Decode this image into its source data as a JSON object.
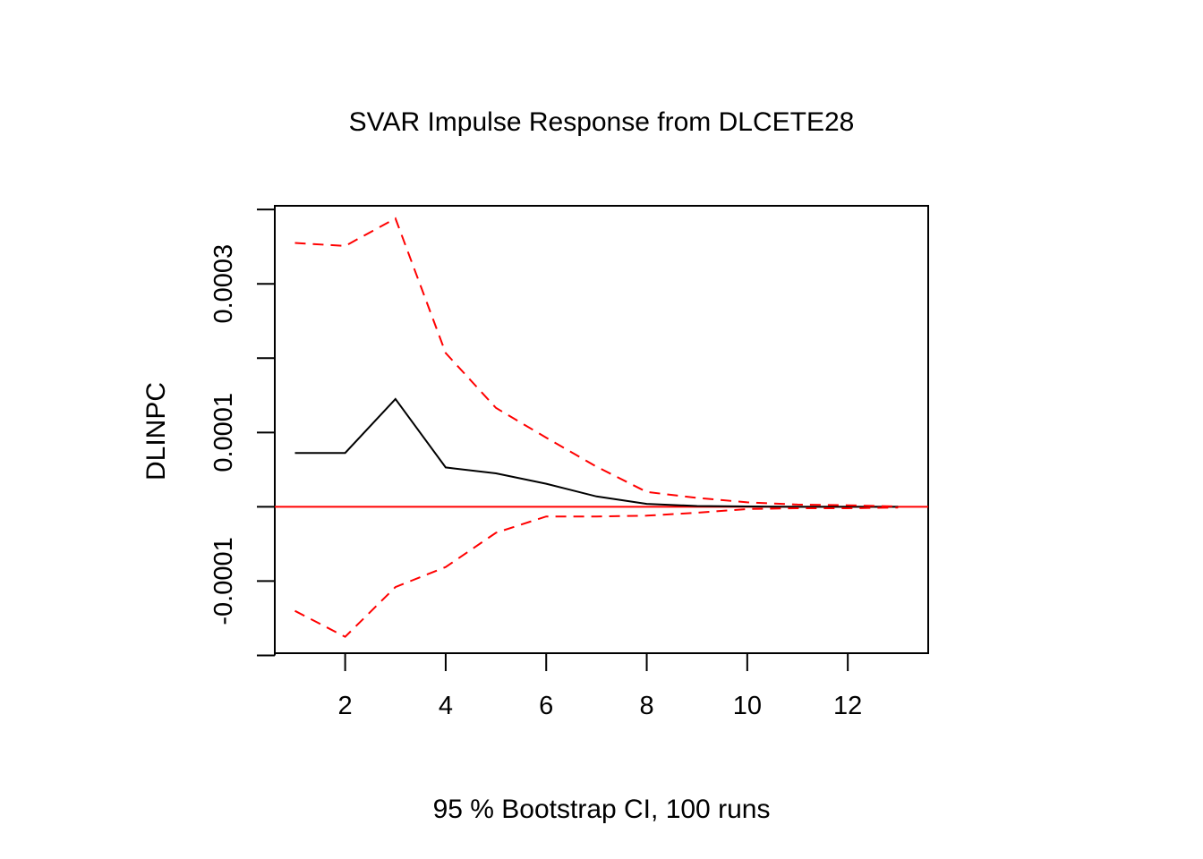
{
  "chart_data": {
    "type": "line",
    "title": "SVAR Impulse Response from DLCETE28",
    "xlabel": "95 % Bootstrap CI,  100 runs",
    "ylabel": "DLINPC",
    "xlim": [
      0.6,
      13.6
    ],
    "ylim": [
      -0.000197,
      0.000405
    ],
    "x_ticks": [
      2,
      4,
      6,
      8,
      10,
      12
    ],
    "x_tick_labels": [
      "2",
      "4",
      "6",
      "8",
      "10",
      "12"
    ],
    "y_ticks": [
      -0.0002,
      -0.0001,
      0.0,
      0.0001,
      0.0002,
      0.0003,
      0.0004
    ],
    "y_tick_labels": [
      "",
      "-0.0001",
      "",
      "0.0001",
      "",
      "0.0003",
      ""
    ],
    "grid": false,
    "x": [
      1,
      2,
      3,
      4,
      5,
      6,
      7,
      8,
      9,
      10,
      11,
      12,
      13
    ],
    "series": [
      {
        "role": "response",
        "color": "#000000",
        "dash": "solid",
        "values": [
          7.25e-05,
          7.25e-05,
          0.000145,
          5.3e-05,
          4.5e-05,
          3.1e-05,
          1.4e-05,
          4e-06,
          1e-06,
          5e-07,
          0.0,
          0.0,
          0.0
        ]
      },
      {
        "role": "upper",
        "color": "#ff0000",
        "dash": "dashed",
        "values": [
          0.000355,
          0.000351,
          0.000388,
          0.000207,
          0.000133,
          9.3e-05,
          5.4e-05,
          2e-05,
          1.2e-05,
          6e-06,
          3e-06,
          2e-06,
          5e-07
        ]
      },
      {
        "role": "lower",
        "color": "#ff0000",
        "dash": "dashed",
        "values": [
          -0.00014,
          -0.000175,
          -0.000108,
          -8.1e-05,
          -3.5e-05,
          -1.3e-05,
          -1.3e-05,
          -1.2e-05,
          -8e-06,
          -3e-06,
          -2e-06,
          -2e-06,
          -1e-06
        ]
      }
    ],
    "reference_line": {
      "y": 0,
      "color": "#ff0000"
    }
  }
}
